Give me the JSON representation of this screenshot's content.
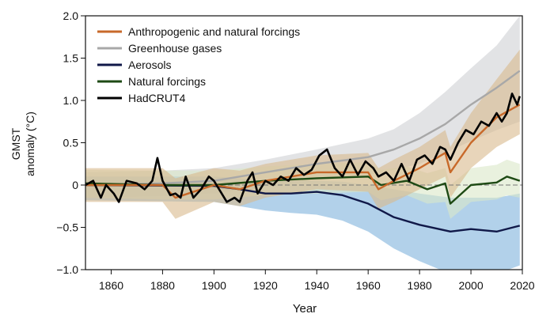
{
  "chart_data": {
    "type": "line",
    "title": "",
    "xlabel": "Year",
    "ylabel": "GMST anomaly (°C)",
    "ylabel_lines": [
      "GMST",
      "anomaly (°C)"
    ],
    "xlim": [
      1850,
      2020
    ],
    "ylim": [
      -1.0,
      2.0
    ],
    "xticks": [
      1860,
      1880,
      1900,
      1920,
      1940,
      1960,
      1980,
      2000,
      2020
    ],
    "yticks": [
      -1.0,
      -0.5,
      0,
      0.5,
      1.0,
      1.5,
      2.0
    ],
    "ytick_labels": [
      "−1.0",
      "−0.5",
      "0",
      "0.5",
      "1.0",
      "1.5",
      "2.0"
    ],
    "grid": false,
    "zero_line": "dashed",
    "legend_position": "top-left",
    "series": [
      {
        "name": "Greenhouse gases",
        "color": "#a8a8a8",
        "band_color": "#cfd0d4",
        "x": [
          1850,
          1880,
          1900,
          1920,
          1940,
          1960,
          1970,
          1980,
          1990,
          2000,
          2010,
          2019
        ],
        "y": [
          0.0,
          0.02,
          0.05,
          0.15,
          0.25,
          0.33,
          0.42,
          0.55,
          0.72,
          0.95,
          1.15,
          1.35
        ],
        "lower": [
          -0.15,
          -0.13,
          -0.1,
          -0.02,
          0.05,
          0.12,
          0.18,
          0.25,
          0.38,
          0.52,
          0.65,
          0.75
        ],
        "upper": [
          0.15,
          0.17,
          0.2,
          0.3,
          0.42,
          0.55,
          0.66,
          0.85,
          1.1,
          1.38,
          1.65,
          2.0
        ]
      },
      {
        "name": "Aerosols",
        "color": "#101848",
        "band_color": "#7fb2dc",
        "x": [
          1850,
          1900,
          1910,
          1920,
          1930,
          1940,
          1950,
          1960,
          1970,
          1980,
          1992,
          2000,
          2010,
          2019
        ],
        "y": [
          0.0,
          -0.01,
          -0.05,
          -0.1,
          -0.1,
          -0.08,
          -0.12,
          -0.22,
          -0.38,
          -0.47,
          -0.55,
          -0.52,
          -0.55,
          -0.48
        ],
        "lower": [
          -0.18,
          -0.2,
          -0.25,
          -0.3,
          -0.33,
          -0.35,
          -0.42,
          -0.55,
          -0.75,
          -0.9,
          -1.05,
          -1.05,
          -1.05,
          -0.95
        ],
        "upper": [
          0.1,
          0.1,
          0.08,
          0.05,
          0.05,
          0.05,
          0.04,
          0.0,
          -0.05,
          -0.1,
          -0.15,
          -0.15,
          -0.15,
          -0.1
        ]
      },
      {
        "name": "Natural forcings",
        "color": "#1e4a14",
        "band_color": "#dbe8c8",
        "x": [
          1850,
          1880,
          1900,
          1920,
          1940,
          1960,
          1965,
          1975,
          1983,
          1990,
          1992,
          2000,
          2010,
          2014,
          2019
        ],
        "y": [
          0.02,
          0.0,
          0.0,
          0.05,
          0.08,
          0.1,
          0.0,
          0.05,
          -0.05,
          0.02,
          -0.22,
          0.0,
          0.03,
          0.1,
          0.05
        ],
        "lower": [
          -0.15,
          -0.17,
          -0.17,
          -0.12,
          -0.1,
          -0.08,
          -0.18,
          -0.12,
          -0.22,
          -0.2,
          -0.4,
          -0.2,
          -0.17,
          -0.12,
          -0.15
        ],
        "upper": [
          0.18,
          0.17,
          0.17,
          0.22,
          0.25,
          0.27,
          0.18,
          0.22,
          0.14,
          0.2,
          0.0,
          0.2,
          0.24,
          0.3,
          0.25
        ]
      },
      {
        "name": "Anthropogenic and natural forcings",
        "color": "#c8692a",
        "band_color": "#d8b98c",
        "x": [
          1850,
          1880,
          1885,
          1900,
          1910,
          1920,
          1940,
          1960,
          1964,
          1970,
          1980,
          1990,
          1992,
          2000,
          2010,
          2019
        ],
        "y": [
          0.0,
          0.0,
          -0.15,
          0.0,
          -0.05,
          0.05,
          0.15,
          0.15,
          -0.05,
          0.05,
          0.2,
          0.38,
          0.15,
          0.5,
          0.8,
          0.95
        ],
        "lower": [
          -0.2,
          -0.2,
          -0.4,
          -0.2,
          -0.25,
          -0.15,
          -0.05,
          -0.08,
          -0.28,
          -0.2,
          -0.05,
          0.1,
          -0.15,
          0.2,
          0.45,
          0.6
        ],
        "upper": [
          0.2,
          0.2,
          0.08,
          0.2,
          0.17,
          0.25,
          0.35,
          0.38,
          0.2,
          0.3,
          0.45,
          0.65,
          0.45,
          0.85,
          1.25,
          1.6
        ]
      },
      {
        "name": "HadCRUT4",
        "color": "#000000",
        "x": [
          1850,
          1853,
          1856,
          1858,
          1861,
          1863,
          1866,
          1870,
          1873,
          1876,
          1878,
          1880,
          1883,
          1885,
          1887,
          1889,
          1892,
          1895,
          1898,
          1900,
          1903,
          1905,
          1908,
          1910,
          1913,
          1915,
          1917,
          1920,
          1923,
          1926,
          1929,
          1932,
          1935,
          1938,
          1941,
          1944,
          1947,
          1950,
          1953,
          1956,
          1959,
          1962,
          1964,
          1967,
          1970,
          1973,
          1976,
          1979,
          1982,
          1985,
          1988,
          1990,
          1992,
          1995,
          1998,
          2001,
          2004,
          2007,
          2010,
          2012,
          2014,
          2016,
          2018,
          2019
        ],
        "y": [
          0.0,
          0.05,
          -0.15,
          0.0,
          -0.1,
          -0.2,
          0.05,
          0.02,
          -0.05,
          0.05,
          0.32,
          0.05,
          -0.12,
          -0.1,
          -0.15,
          0.1,
          -0.15,
          -0.05,
          0.1,
          0.05,
          -0.1,
          -0.2,
          -0.15,
          -0.2,
          0.05,
          0.15,
          -0.1,
          0.05,
          0.0,
          0.1,
          0.05,
          0.2,
          0.12,
          0.18,
          0.35,
          0.42,
          0.2,
          0.1,
          0.3,
          0.12,
          0.28,
          0.2,
          0.1,
          0.15,
          0.05,
          0.25,
          0.05,
          0.3,
          0.35,
          0.25,
          0.45,
          0.42,
          0.3,
          0.5,
          0.65,
          0.6,
          0.75,
          0.7,
          0.85,
          0.75,
          0.85,
          1.08,
          0.95,
          1.05
        ]
      }
    ]
  }
}
